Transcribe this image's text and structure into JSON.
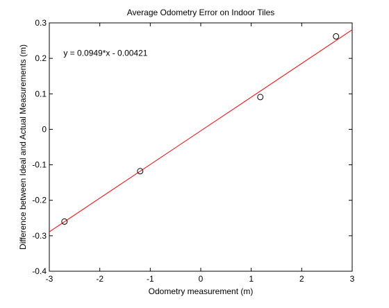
{
  "chart_data": {
    "type": "scatter",
    "title": "Average Odometry Error on Indoor Tiles",
    "xlabel": "Odometry measurement (m)",
    "ylabel": "Difference between Ideal and Actual Measurements (m)",
    "xlim": [
      -3,
      3
    ],
    "ylim": [
      -0.4,
      0.3
    ],
    "x_ticks": [
      -3,
      -2,
      -1,
      0,
      1,
      2,
      3
    ],
    "x_tick_labels": [
      "-3",
      "-2",
      "-1",
      "0",
      "1",
      "2",
      "3"
    ],
    "y_ticks": [
      -0.4,
      -0.3,
      -0.2,
      -0.1,
      0,
      0.1,
      0.2,
      0.3
    ],
    "y_tick_labels": [
      "-0.4",
      "-0.3",
      "-0.2",
      "-0.1",
      "0",
      "0.1",
      "0.2",
      "0.3"
    ],
    "grid": false,
    "series": [
      {
        "type": "scatter",
        "marker": "circle-open",
        "color": "#000000",
        "x": [
          -2.7,
          -1.2,
          1.18,
          2.68
        ],
        "y": [
          -0.26,
          -0.118,
          0.091,
          0.262
        ]
      },
      {
        "type": "line",
        "color": "#ff0000",
        "slope": 0.0949,
        "intercept": -0.00421,
        "x": [
          -3,
          3
        ],
        "y": [
          -0.28891,
          0.28049
        ]
      }
    ],
    "annotations": [
      {
        "text": "y = 0.0949*x - 0.00421",
        "x": -2.72,
        "y": 0.215
      }
    ]
  }
}
